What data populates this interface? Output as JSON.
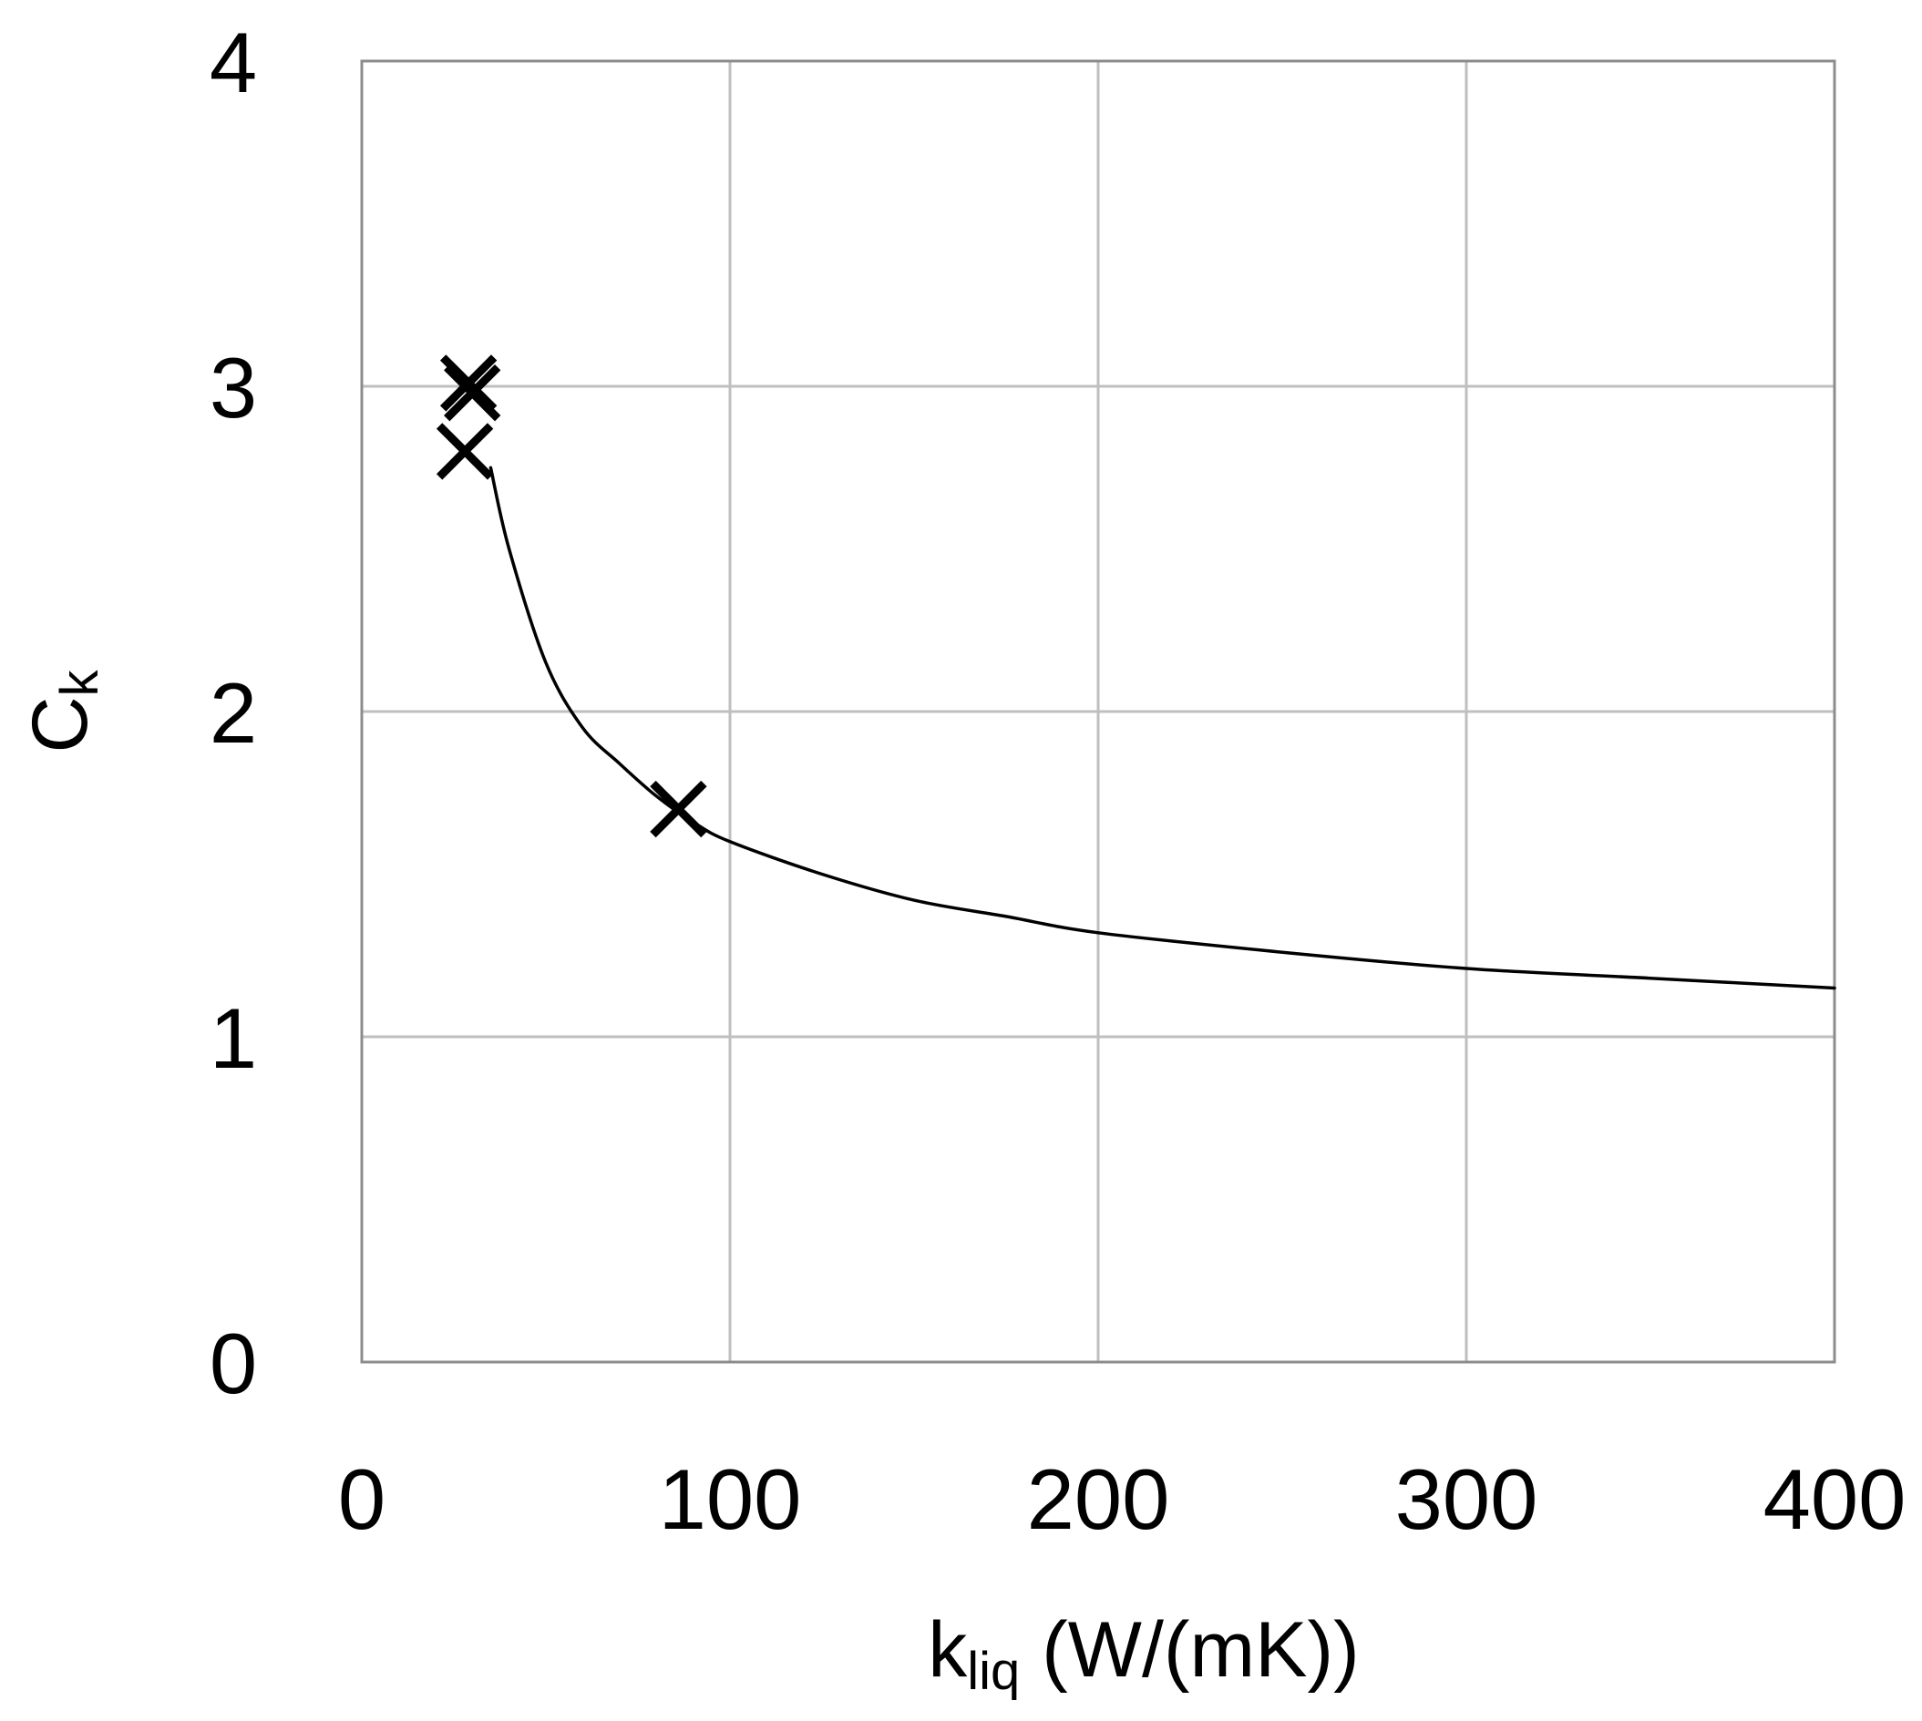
{
  "chart_data": {
    "type": "scatter",
    "xlabel": {
      "main": "k",
      "sub": "liq",
      "rest": " (W/(mK))"
    },
    "ylabel": {
      "main": "C",
      "sub": "k"
    },
    "xlim": [
      0,
      400
    ],
    "ylim": [
      0,
      4
    ],
    "x_ticks": [
      0,
      100,
      200,
      300,
      400
    ],
    "y_ticks": [
      0,
      1,
      2,
      3,
      4
    ],
    "x_tick_labels": [
      "0",
      "100",
      "200",
      "300",
      "400"
    ],
    "y_tick_labels": [
      "0",
      "1",
      "2",
      "3",
      "4"
    ],
    "grid": true,
    "legend": "none",
    "colors": {
      "grid": "#bfbfbf",
      "axis": "#8c8c8c",
      "line": "#000000",
      "marker": "#000000"
    },
    "series": [
      {
        "kind": "markers",
        "marker": "x",
        "points": [
          {
            "x": 29,
            "y": 3.01
          },
          {
            "x": 30,
            "y": 2.98
          },
          {
            "x": 28,
            "y": 2.8
          },
          {
            "x": 86,
            "y": 1.7
          }
        ]
      },
      {
        "kind": "line",
        "points": [
          {
            "x": 35,
            "y": 2.75
          },
          {
            "x": 40,
            "y": 2.5
          },
          {
            "x": 50,
            "y": 2.15
          },
          {
            "x": 60,
            "y": 1.95
          },
          {
            "x": 70,
            "y": 1.84
          },
          {
            "x": 80,
            "y": 1.74
          },
          {
            "x": 90,
            "y": 1.66
          },
          {
            "x": 100,
            "y": 1.6
          },
          {
            "x": 125,
            "y": 1.5
          },
          {
            "x": 150,
            "y": 1.42
          },
          {
            "x": 175,
            "y": 1.37
          },
          {
            "x": 200,
            "y": 1.32
          },
          {
            "x": 250,
            "y": 1.26
          },
          {
            "x": 300,
            "y": 1.21
          },
          {
            "x": 350,
            "y": 1.18
          },
          {
            "x": 400,
            "y": 1.15
          }
        ]
      }
    ]
  }
}
